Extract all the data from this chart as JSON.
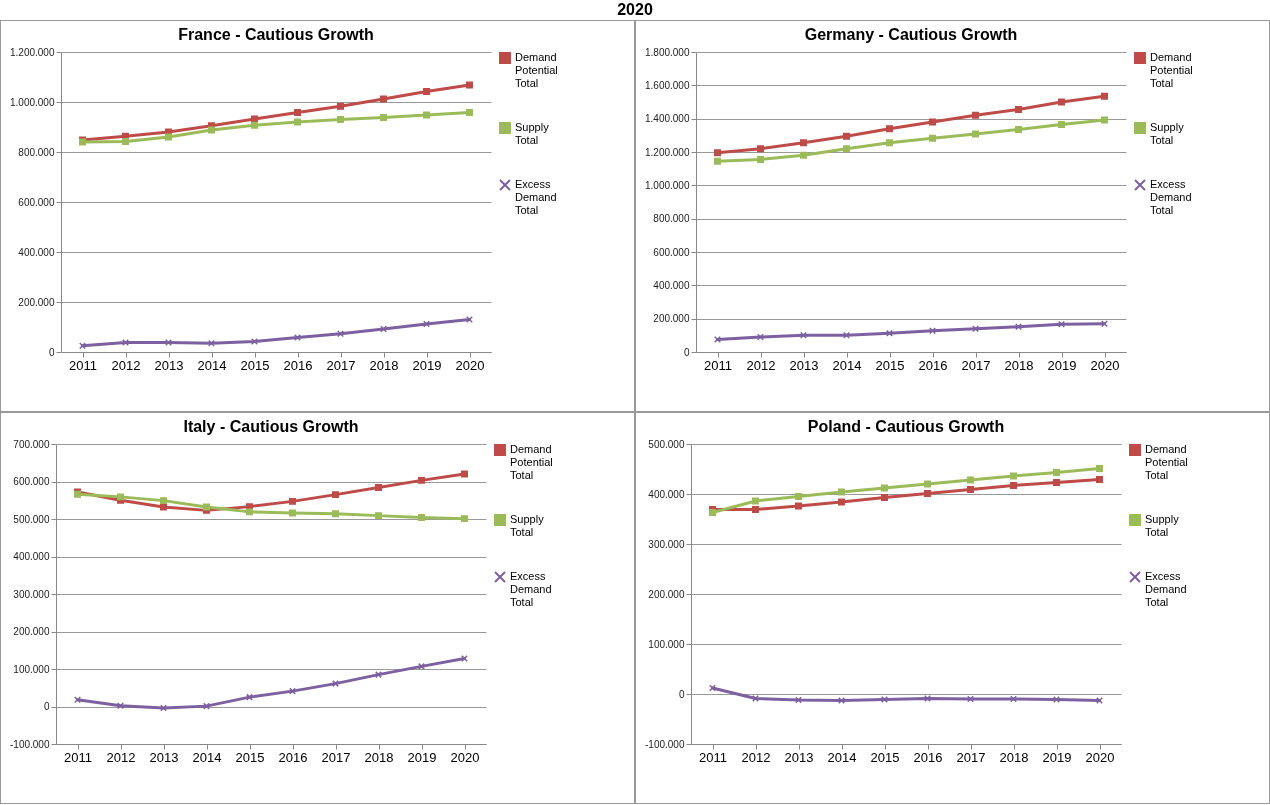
{
  "chart_data": [
    {
      "type": "other",
      "title": "2020"
    },
    {
      "type": "line",
      "title": "France - Cautious Growth",
      "categories": [
        "2011",
        "2012",
        "2013",
        "2014",
        "2015",
        "2016",
        "2017",
        "2018",
        "2019",
        "2020"
      ],
      "series": [
        {
          "name": "Demand Potential Total",
          "color": "#be4b48",
          "marker": "square",
          "values": [
            848000,
            863000,
            880000,
            905000,
            932000,
            958000,
            983000,
            1012000,
            1042000,
            1068000
          ]
        },
        {
          "name": "Supply Total",
          "color": "#9bbb59",
          "marker": "square",
          "values": [
            840000,
            842000,
            860000,
            888000,
            907000,
            920000,
            930000,
            938000,
            948000,
            958000
          ]
        },
        {
          "name": "Excess Demand Total",
          "color": "#7d60a0",
          "marker": "cross",
          "values": [
            25000,
            38000,
            38000,
            35000,
            42000,
            58000,
            73000,
            92000,
            112000,
            130000
          ]
        }
      ],
      "ylim": [
        0,
        1200000
      ],
      "yticks": [
        {
          "value": 0,
          "label": "0"
        },
        {
          "value": 200000,
          "label": "200.000"
        },
        {
          "value": 400000,
          "label": "400.000"
        },
        {
          "value": 600000,
          "label": "600.000"
        },
        {
          "value": 800000,
          "label": "800.000"
        },
        {
          "value": 1000000,
          "label": "1.000.000"
        },
        {
          "value": 1200000,
          "label": "1.200.000"
        }
      ],
      "grid": "y",
      "legend": "right"
    },
    {
      "type": "line",
      "title": "Germany - Cautious Growth",
      "categories": [
        "2011",
        "2012",
        "2013",
        "2014",
        "2015",
        "2016",
        "2017",
        "2018",
        "2019",
        "2020"
      ],
      "series": [
        {
          "name": "Demand Potential Total",
          "color": "#be4b48",
          "marker": "square",
          "values": [
            1195000,
            1220000,
            1255000,
            1295000,
            1340000,
            1380000,
            1420000,
            1455000,
            1500000,
            1535000
          ]
        },
        {
          "name": "Supply Total",
          "color": "#9bbb59",
          "marker": "square",
          "values": [
            1145000,
            1155000,
            1180000,
            1220000,
            1255000,
            1282000,
            1308000,
            1335000,
            1365000,
            1392000
          ]
        },
        {
          "name": "Excess Demand Total",
          "color": "#7d60a0",
          "marker": "cross",
          "values": [
            75000,
            90000,
            100000,
            100000,
            112000,
            127000,
            140000,
            152000,
            166000,
            170000
          ]
        }
      ],
      "ylim": [
        0,
        1800000
      ],
      "yticks": [
        {
          "value": 0,
          "label": "0"
        },
        {
          "value": 200000,
          "label": "200.000"
        },
        {
          "value": 400000,
          "label": "400.000"
        },
        {
          "value": 600000,
          "label": "600.000"
        },
        {
          "value": 800000,
          "label": "800.000"
        },
        {
          "value": 1000000,
          "label": "1.000.000"
        },
        {
          "value": 1200000,
          "label": "1.200.000"
        },
        {
          "value": 1400000,
          "label": "1.400.000"
        },
        {
          "value": 1600000,
          "label": "1.600.000"
        },
        {
          "value": 1800000,
          "label": "1.800.000"
        }
      ],
      "grid": "y",
      "legend": "right"
    },
    {
      "type": "line",
      "title": "Italy - Cautious Growth",
      "categories": [
        "2011",
        "2012",
        "2013",
        "2014",
        "2015",
        "2016",
        "2017",
        "2018",
        "2019",
        "2020"
      ],
      "series": [
        {
          "name": "Demand Potential Total",
          "color": "#be4b48",
          "marker": "square",
          "values": [
            572000,
            550000,
            532000,
            523000,
            533000,
            547000,
            565000,
            584000,
            603000,
            620000
          ]
        },
        {
          "name": "Supply Total",
          "color": "#9bbb59",
          "marker": "square",
          "values": [
            566000,
            559000,
            549000,
            532000,
            519000,
            516000,
            514000,
            509000,
            504000,
            501000
          ]
        },
        {
          "name": "Excess Demand Total",
          "color": "#7d60a0",
          "marker": "cross",
          "values": [
            18000,
            2000,
            -4000,
            1000,
            25000,
            41000,
            61000,
            85000,
            107000,
            128000
          ]
        }
      ],
      "ylim": [
        -100000,
        700000
      ],
      "yticks": [
        {
          "value": -100000,
          "label": "-100.000"
        },
        {
          "value": 0,
          "label": "0"
        },
        {
          "value": 100000,
          "label": "100.000"
        },
        {
          "value": 200000,
          "label": "200.000"
        },
        {
          "value": 300000,
          "label": "300.000"
        },
        {
          "value": 400000,
          "label": "400.000"
        },
        {
          "value": 500000,
          "label": "500.000"
        },
        {
          "value": 600000,
          "label": "600.000"
        },
        {
          "value": 700000,
          "label": "700.000"
        }
      ],
      "grid": "y",
      "legend": "right"
    },
    {
      "type": "line",
      "title": "Poland - Cautious Growth",
      "categories": [
        "2011",
        "2012",
        "2013",
        "2014",
        "2015",
        "2016",
        "2017",
        "2018",
        "2019",
        "2020"
      ],
      "series": [
        {
          "name": "Demand Potential Total",
          "color": "#be4b48",
          "marker": "square",
          "values": [
            369000,
            369000,
            376000,
            384000,
            393000,
            401000,
            409000,
            417000,
            423000,
            429000
          ]
        },
        {
          "name": "Supply Total",
          "color": "#9bbb59",
          "marker": "square",
          "values": [
            363000,
            386000,
            395000,
            404000,
            412000,
            420000,
            428000,
            436000,
            443000,
            451000
          ]
        },
        {
          "name": "Excess Demand Total",
          "color": "#7d60a0",
          "marker": "cross",
          "values": [
            12000,
            -9000,
            -12000,
            -13000,
            -11000,
            -9000,
            -10000,
            -10000,
            -11000,
            -13000
          ]
        }
      ],
      "ylim": [
        -100000,
        500000
      ],
      "yticks": [
        {
          "value": -100000,
          "label": "-100.000"
        },
        {
          "value": 0,
          "label": "0"
        },
        {
          "value": 100000,
          "label": "100.000"
        },
        {
          "value": 200000,
          "label": "200.000"
        },
        {
          "value": 300000,
          "label": "300.000"
        },
        {
          "value": 400000,
          "label": "400.000"
        },
        {
          "value": 500000,
          "label": "500.000"
        }
      ],
      "grid": "y",
      "legend": "right"
    }
  ]
}
